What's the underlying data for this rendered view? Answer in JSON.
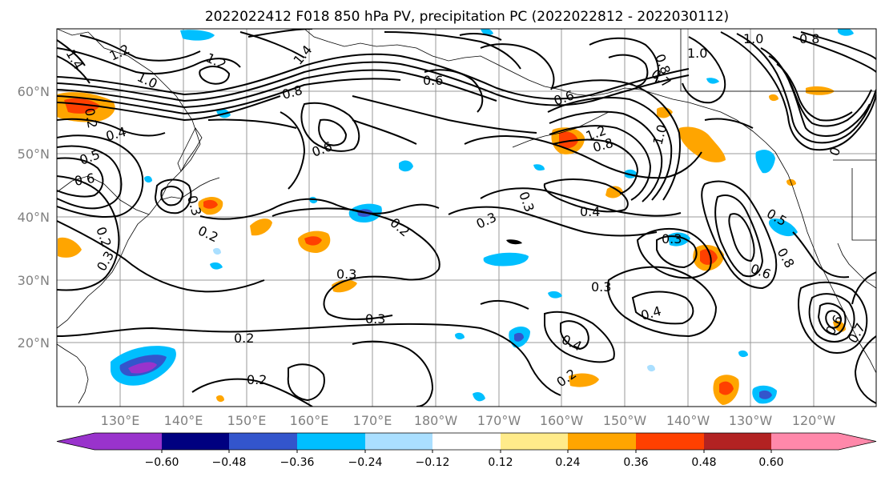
{
  "title": "2022022412 F018 850 hPa PV, precipitation PC (2022022812 - 2022030112)",
  "axes": {
    "lat_ticks": [
      "60°N",
      "50°N",
      "40°N",
      "30°N",
      "20°N"
    ],
    "lon_ticks": [
      "130°E",
      "140°E",
      "150°E",
      "160°E",
      "170°E",
      "180°W",
      "170°W",
      "160°W",
      "150°W",
      "140°W",
      "130°W",
      "120°W"
    ]
  },
  "contour_labels": [
    {
      "id": "c1",
      "text": "1.2"
    },
    {
      "id": "c2",
      "text": "1.4"
    },
    {
      "id": "c3",
      "text": "1.2"
    },
    {
      "id": "c4",
      "text": "1.0"
    },
    {
      "id": "c5",
      "text": "1.4"
    },
    {
      "id": "c6",
      "text": "0.6"
    },
    {
      "id": "c7",
      "text": "0.8"
    },
    {
      "id": "c8",
      "text": "0.6"
    },
    {
      "id": "c9",
      "text": "0.2"
    },
    {
      "id": "c10",
      "text": "0.4"
    },
    {
      "id": "c11",
      "text": "0.5"
    },
    {
      "id": "c12",
      "text": "0.6"
    },
    {
      "id": "c13",
      "text": "0.2"
    },
    {
      "id": "c14",
      "text": "0.2"
    },
    {
      "id": "c15",
      "text": "0.3"
    },
    {
      "id": "c16",
      "text": "0.3"
    },
    {
      "id": "c17",
      "text": "0.3"
    },
    {
      "id": "c18",
      "text": "0.2"
    },
    {
      "id": "c19",
      "text": "0.2"
    },
    {
      "id": "c20",
      "text": "0.2"
    },
    {
      "id": "c21",
      "text": "0.3"
    },
    {
      "id": "c22",
      "text": "0.3"
    },
    {
      "id": "c23",
      "text": "0.3"
    },
    {
      "id": "c24",
      "text": "0.4"
    },
    {
      "id": "c25",
      "text": "0.3"
    },
    {
      "id": "c26",
      "text": "0.4"
    },
    {
      "id": "c27",
      "text": "0.4"
    },
    {
      "id": "c28",
      "text": "0.2"
    },
    {
      "id": "c29",
      "text": "1.2"
    },
    {
      "id": "c30",
      "text": "0.8"
    },
    {
      "id": "c31",
      "text": "0.6"
    },
    {
      "id": "c32",
      "text": "1.0"
    },
    {
      "id": "c33",
      "text": "1.0"
    },
    {
      "id": "c34",
      "text": "0.7"
    },
    {
      "id": "c35",
      "text": "0.8"
    },
    {
      "id": "c36",
      "text": "1.0"
    },
    {
      "id": "c37",
      "text": "0.8"
    },
    {
      "id": "c38",
      "text": "0.5"
    },
    {
      "id": "c39",
      "text": "0.6"
    },
    {
      "id": "c40",
      "text": "0.8"
    },
    {
      "id": "c41",
      "text": "0.6"
    },
    {
      "id": "c42",
      "text": "0.7"
    },
    {
      "id": "c43",
      "text": "0.3"
    },
    {
      "id": "c44",
      "text": "0"
    }
  ],
  "colorbar": {
    "colors": [
      "#9933cc",
      "#000080",
      "#3355cc",
      "#00bfff",
      "#aadfff",
      "#ffffff",
      "#ffeb8a",
      "#ffa500",
      "#ff4000",
      "#b22222",
      "#ff88aa"
    ],
    "tick_labels": [
      "−0.60",
      "−0.48",
      "−0.36",
      "−0.24",
      "−0.12",
      "0.12",
      "0.24",
      "0.36",
      "0.48",
      "0.60"
    ]
  }
}
